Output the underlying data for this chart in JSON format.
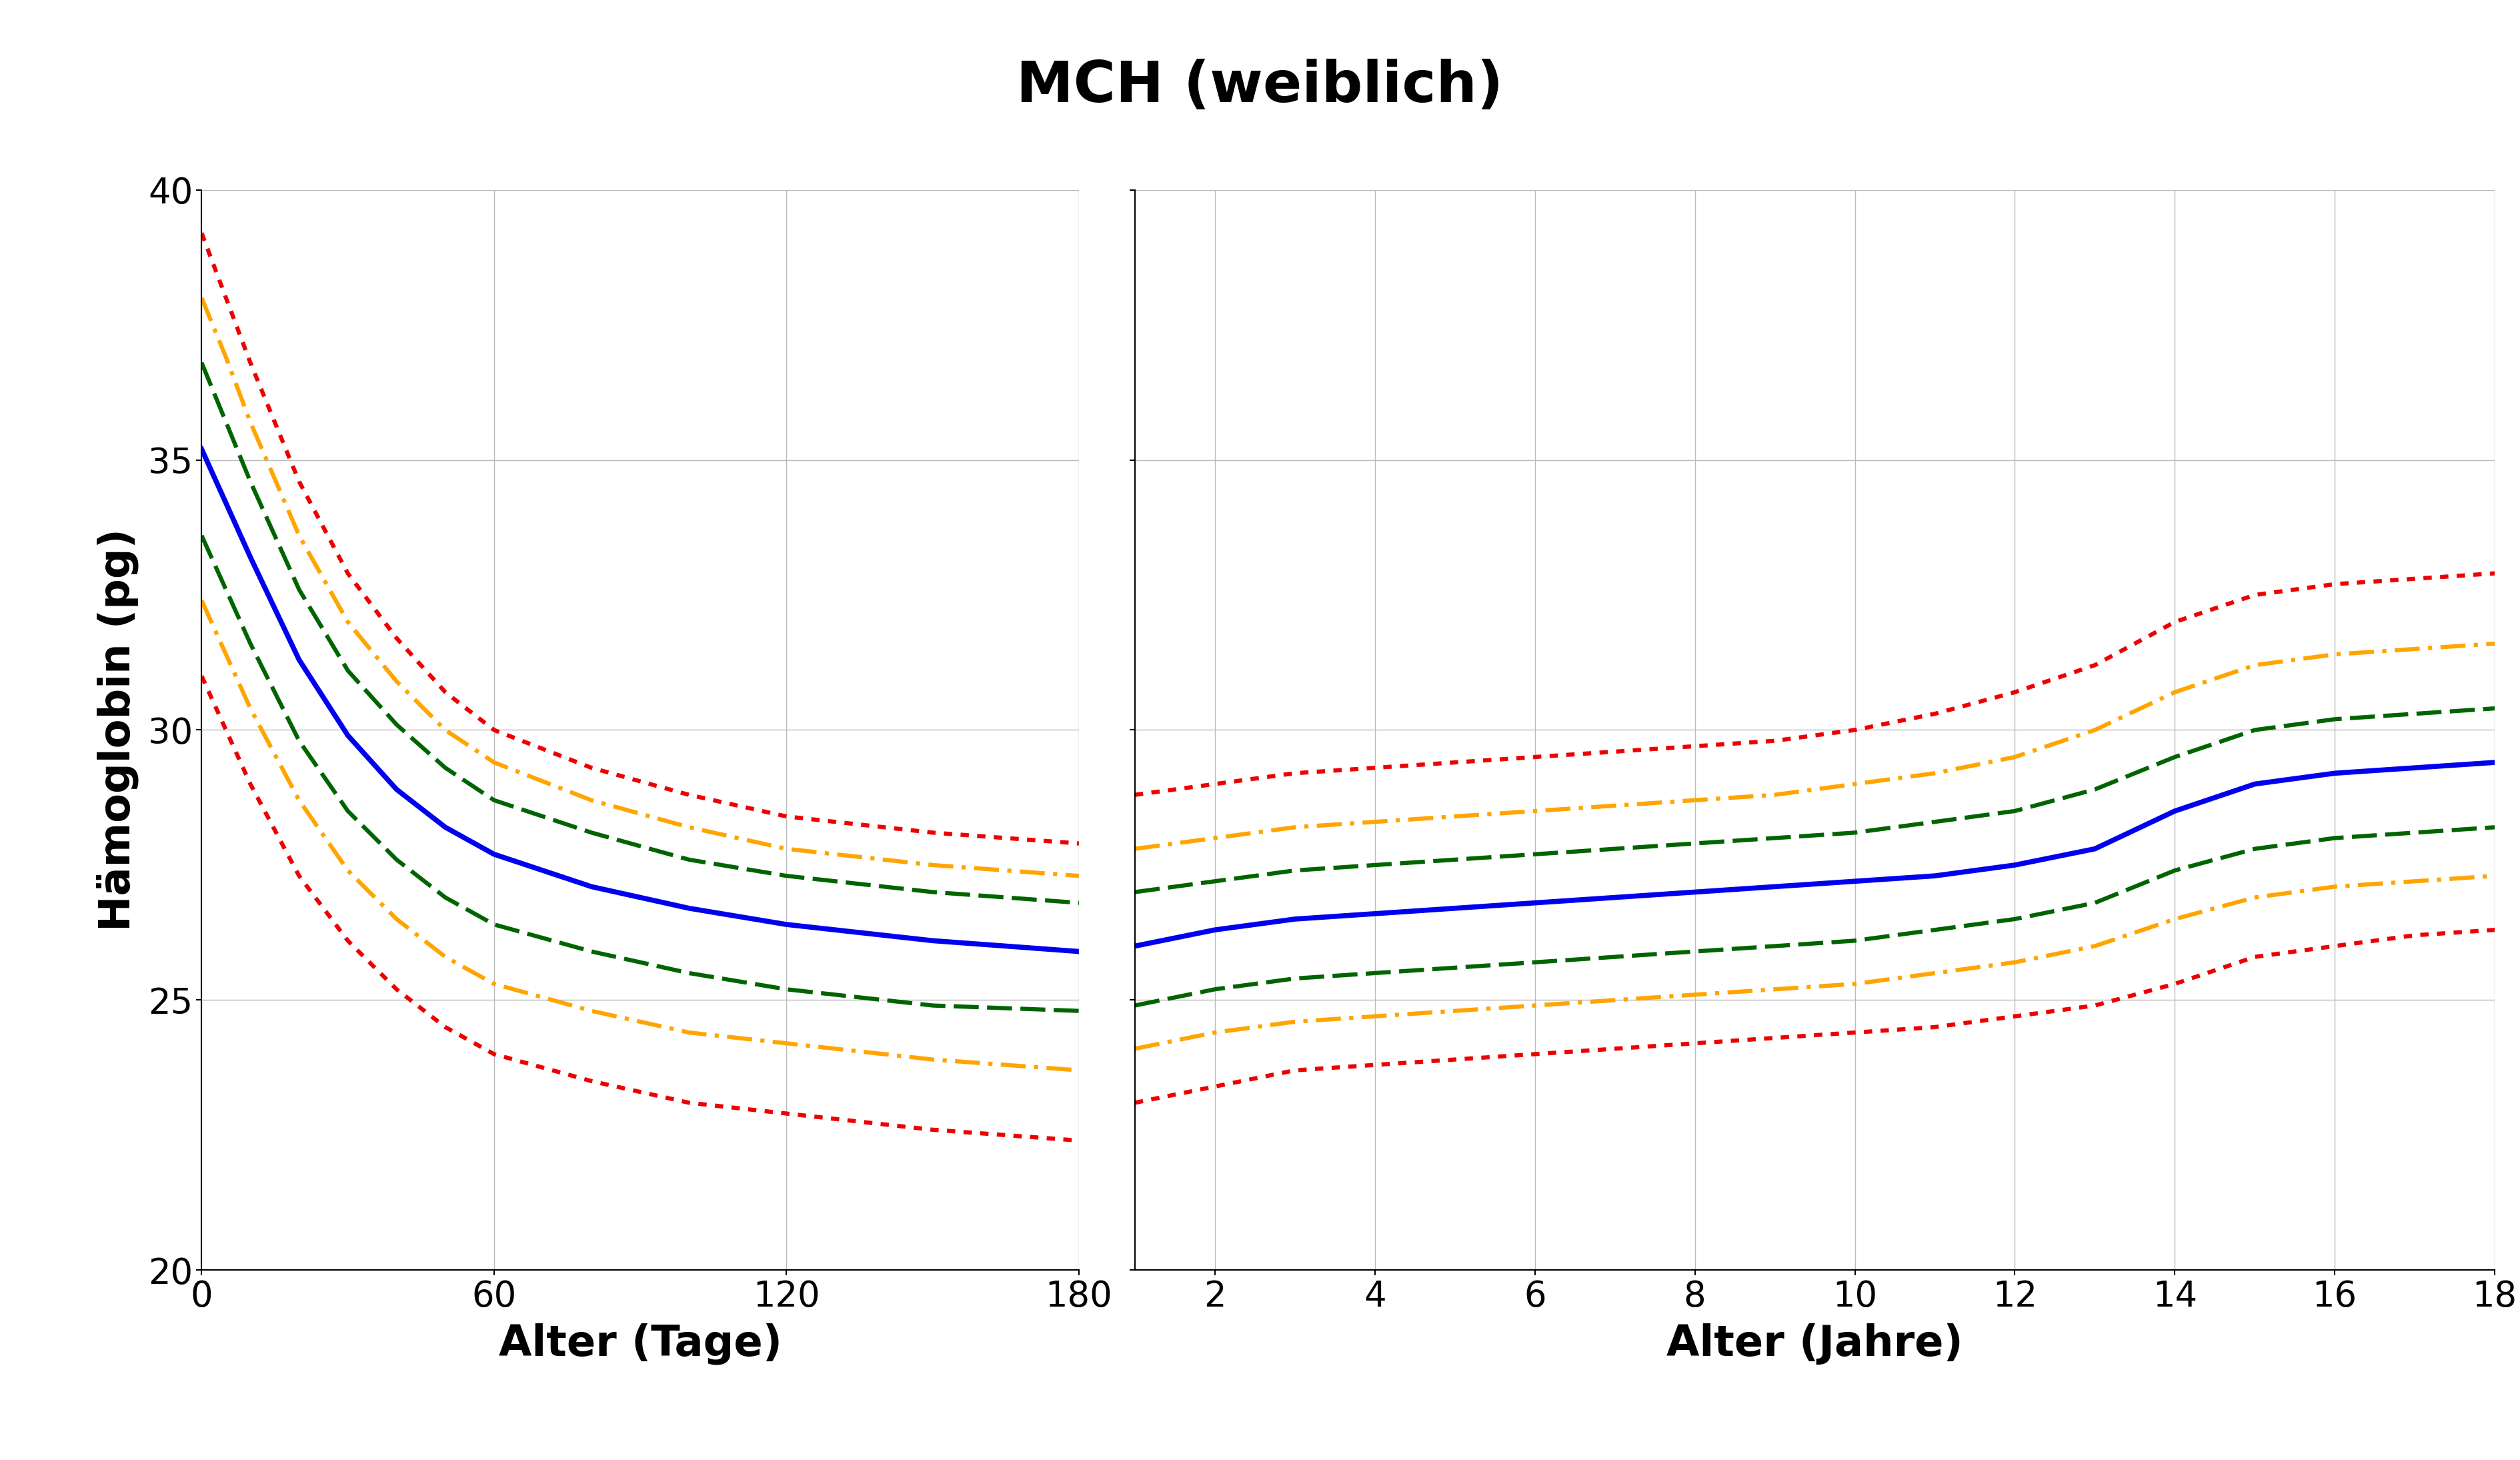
{
  "title": "MCH (weiblich)",
  "ylabel": "Hämoglobin (pg)",
  "xlabel_left": "Alter (Tage)",
  "xlabel_right": "Alter (Jahre)",
  "background_color": "#ffffff",
  "grid_color": "#bbbbbb",
  "title_fontsize": 62,
  "axis_label_fontsize": 46,
  "tick_fontsize": 38,
  "ylim": [
    20,
    40
  ],
  "yticks": [
    20,
    25,
    30,
    35,
    40
  ],
  "left_xlim": [
    0,
    180
  ],
  "left_xticks": [
    0,
    60,
    120,
    180
  ],
  "right_xlim": [
    1,
    18
  ],
  "right_xticks": [
    2,
    4,
    6,
    8,
    10,
    12,
    14,
    16,
    18
  ],
  "colors": {
    "blue": "#0000EE",
    "green": "#006400",
    "orange": "#FFA500",
    "red": "#EE0000"
  },
  "lw_solid": 5.5,
  "lw_dashed": 4.5,
  "left_curves": {
    "p50": {
      "x": [
        0,
        5,
        10,
        20,
        30,
        40,
        50,
        60,
        80,
        100,
        120,
        150,
        180
      ],
      "y": [
        35.2,
        34.2,
        33.2,
        31.3,
        29.9,
        28.9,
        28.2,
        27.7,
        27.1,
        26.7,
        26.4,
        26.1,
        25.9
      ]
    },
    "p75": {
      "x": [
        0,
        5,
        10,
        20,
        30,
        40,
        50,
        60,
        80,
        100,
        120,
        150,
        180
      ],
      "y": [
        36.8,
        35.7,
        34.6,
        32.6,
        31.1,
        30.1,
        29.3,
        28.7,
        28.1,
        27.6,
        27.3,
        27.0,
        26.8
      ]
    },
    "p25": {
      "x": [
        0,
        5,
        10,
        20,
        30,
        40,
        50,
        60,
        80,
        100,
        120,
        150,
        180
      ],
      "y": [
        33.6,
        32.6,
        31.6,
        29.8,
        28.5,
        27.6,
        26.9,
        26.4,
        25.9,
        25.5,
        25.2,
        24.9,
        24.8
      ]
    },
    "p90": {
      "x": [
        0,
        5,
        10,
        20,
        30,
        40,
        50,
        60,
        80,
        100,
        120,
        150,
        180
      ],
      "y": [
        38.0,
        36.9,
        35.7,
        33.6,
        32.0,
        30.9,
        30.0,
        29.4,
        28.7,
        28.2,
        27.8,
        27.5,
        27.3
      ]
    },
    "p10": {
      "x": [
        0,
        5,
        10,
        20,
        30,
        40,
        50,
        60,
        80,
        100,
        120,
        150,
        180
      ],
      "y": [
        32.4,
        31.4,
        30.4,
        28.7,
        27.4,
        26.5,
        25.8,
        25.3,
        24.8,
        24.4,
        24.2,
        23.9,
        23.7
      ]
    },
    "p97": {
      "x": [
        0,
        5,
        10,
        20,
        30,
        40,
        50,
        60,
        80,
        100,
        120,
        150,
        180
      ],
      "y": [
        39.2,
        38.0,
        36.8,
        34.6,
        32.9,
        31.7,
        30.7,
        30.0,
        29.3,
        28.8,
        28.4,
        28.1,
        27.9
      ]
    },
    "p3": {
      "x": [
        0,
        5,
        10,
        20,
        30,
        40,
        50,
        60,
        80,
        100,
        120,
        150,
        180
      ],
      "y": [
        31.0,
        30.0,
        29.0,
        27.3,
        26.1,
        25.2,
        24.5,
        24.0,
        23.5,
        23.1,
        22.9,
        22.6,
        22.4
      ]
    }
  },
  "right_curves": {
    "p50": {
      "x": [
        1,
        2,
        3,
        4,
        5,
        6,
        7,
        8,
        9,
        10,
        11,
        12,
        13,
        14,
        15,
        16,
        17,
        18
      ],
      "y": [
        26.0,
        26.3,
        26.5,
        26.6,
        26.7,
        26.8,
        26.9,
        27.0,
        27.1,
        27.2,
        27.3,
        27.5,
        27.8,
        28.5,
        29.0,
        29.2,
        29.3,
        29.4
      ]
    },
    "p75": {
      "x": [
        1,
        2,
        3,
        4,
        5,
        6,
        7,
        8,
        9,
        10,
        11,
        12,
        13,
        14,
        15,
        16,
        17,
        18
      ],
      "y": [
        27.0,
        27.2,
        27.4,
        27.5,
        27.6,
        27.7,
        27.8,
        27.9,
        28.0,
        28.1,
        28.3,
        28.5,
        28.9,
        29.5,
        30.0,
        30.2,
        30.3,
        30.4
      ]
    },
    "p25": {
      "x": [
        1,
        2,
        3,
        4,
        5,
        6,
        7,
        8,
        9,
        10,
        11,
        12,
        13,
        14,
        15,
        16,
        17,
        18
      ],
      "y": [
        24.9,
        25.2,
        25.4,
        25.5,
        25.6,
        25.7,
        25.8,
        25.9,
        26.0,
        26.1,
        26.3,
        26.5,
        26.8,
        27.4,
        27.8,
        28.0,
        28.1,
        28.2
      ]
    },
    "p90": {
      "x": [
        1,
        2,
        3,
        4,
        5,
        6,
        7,
        8,
        9,
        10,
        11,
        12,
        13,
        14,
        15,
        16,
        17,
        18
      ],
      "y": [
        27.8,
        28.0,
        28.2,
        28.3,
        28.4,
        28.5,
        28.6,
        28.7,
        28.8,
        29.0,
        29.2,
        29.5,
        30.0,
        30.7,
        31.2,
        31.4,
        31.5,
        31.6
      ]
    },
    "p10": {
      "x": [
        1,
        2,
        3,
        4,
        5,
        6,
        7,
        8,
        9,
        10,
        11,
        12,
        13,
        14,
        15,
        16,
        17,
        18
      ],
      "y": [
        24.1,
        24.4,
        24.6,
        24.7,
        24.8,
        24.9,
        25.0,
        25.1,
        25.2,
        25.3,
        25.5,
        25.7,
        26.0,
        26.5,
        26.9,
        27.1,
        27.2,
        27.3
      ]
    },
    "p97": {
      "x": [
        1,
        2,
        3,
        4,
        5,
        6,
        7,
        8,
        9,
        10,
        11,
        12,
        13,
        14,
        15,
        16,
        17,
        18
      ],
      "y": [
        28.8,
        29.0,
        29.2,
        29.3,
        29.4,
        29.5,
        29.6,
        29.7,
        29.8,
        30.0,
        30.3,
        30.7,
        31.2,
        32.0,
        32.5,
        32.7,
        32.8,
        32.9
      ]
    },
    "p3": {
      "x": [
        1,
        2,
        3,
        4,
        5,
        6,
        7,
        8,
        9,
        10,
        11,
        12,
        13,
        14,
        15,
        16,
        17,
        18
      ],
      "y": [
        23.1,
        23.4,
        23.7,
        23.8,
        23.9,
        24.0,
        24.1,
        24.2,
        24.3,
        24.4,
        24.5,
        24.7,
        24.9,
        25.3,
        25.8,
        26.0,
        26.2,
        26.3
      ]
    }
  }
}
